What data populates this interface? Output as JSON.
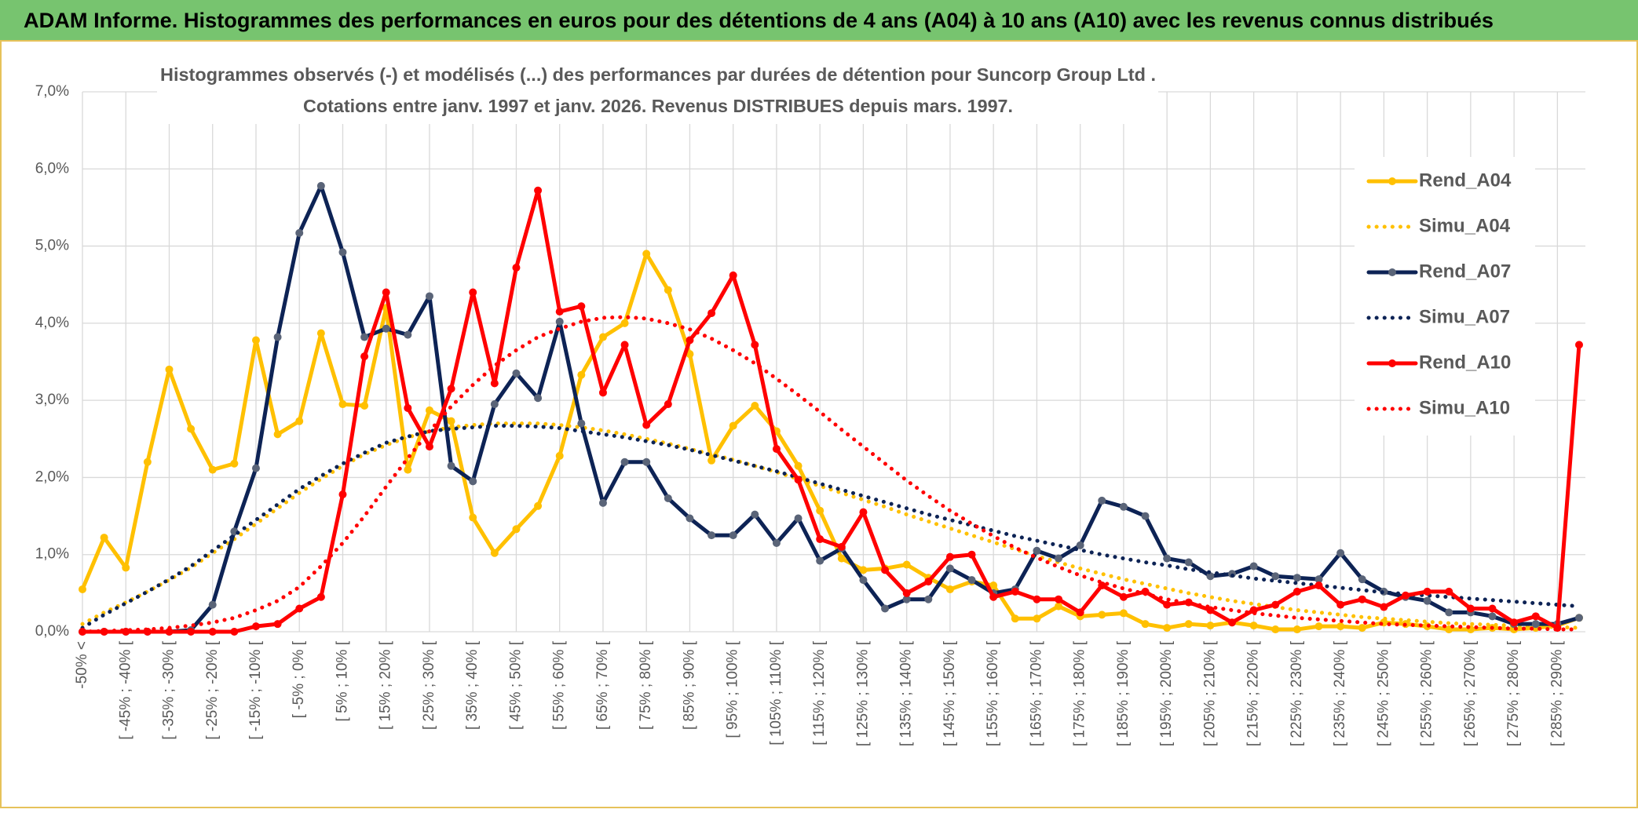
{
  "chart_data": {
    "type": "line",
    "header": "ADAM Informe. Histogrammes des performances en euros pour des détentions de 4 ans (A04) à 10 ans (A10) avec les revenus connus distribués",
    "title": "Histogrammes observés (-) et modélisés (...) des performances par durées de détention pour Suncorp Group Ltd .",
    "subtitle": "Cotations entre janv. 1997 et janv. 2026. Revenus DISTRIBUES depuis mars. 1997.",
    "categories": [
      "-50% <",
      null,
      "[ -45% ; -40% [",
      null,
      "[ -35% ; -30% [",
      null,
      "[ -25% ; -20% [",
      null,
      "[ -15% ; -10% [",
      null,
      "[ -5% ; 0% [",
      null,
      "[ 5% ; 10% [",
      null,
      "[ 15% ; 20% [",
      null,
      "[ 25% ; 30% [",
      null,
      "[ 35% ; 40% [",
      null,
      "[ 45% ; 50% [",
      null,
      "[ 55% ; 60% [",
      null,
      "[ 65% ; 70% [",
      null,
      "[ 75% ; 80% [",
      null,
      "[ 85% ; 90% [",
      null,
      "[ 95% ; 100% [",
      null,
      "[ 105% ; 110% [",
      null,
      "[ 115% ; 120% [",
      null,
      "[ 125% ; 130% [",
      null,
      "[ 135% ; 140% [",
      null,
      "[ 145% ; 150% [",
      null,
      "[ 155% ; 160% [",
      null,
      "[ 165% ; 170% [",
      null,
      "[ 175% ; 180% [",
      null,
      "[ 185% ; 190% [",
      null,
      "[ 195% ; 200% [",
      null,
      "[ 205% ; 210% [",
      null,
      "[ 215% ; 220% [",
      null,
      "[ 225% ; 230% [",
      null,
      "[ 235% ; 240% [",
      null,
      "[ 245% ; 250% [",
      null,
      "[ 255% ; 260% [",
      null,
      "[ 265% ; 270% [",
      null,
      "[ 275% ; 280% [",
      null,
      "[ 285% ; 290% [",
      null
    ],
    "series": [
      {
        "name": "Rend_A04",
        "color": "#ffc000",
        "style": "solid",
        "marker": true,
        "values": [
          0.55,
          1.22,
          0.83,
          2.2,
          3.4,
          2.63,
          2.1,
          2.18,
          3.78,
          2.56,
          2.73,
          3.87,
          2.95,
          2.93,
          4.2,
          2.1,
          2.87,
          2.73,
          1.48,
          1.02,
          1.33,
          1.63,
          2.28,
          3.33,
          3.82,
          4.0,
          4.9,
          4.43,
          3.6,
          2.22,
          2.67,
          2.93,
          2.6,
          2.15,
          1.57,
          0.95,
          0.8,
          0.82,
          0.87,
          0.7,
          0.55,
          0.65,
          0.6,
          0.17,
          0.17,
          0.33,
          0.2,
          0.22,
          0.24,
          0.1,
          0.05,
          0.1,
          0.08,
          0.12,
          0.08,
          0.03,
          0.03,
          0.07,
          0.07,
          0.05,
          0.12,
          0.1,
          0.07,
          0.03,
          0.03,
          0.05,
          0.03,
          0.05,
          0.08,
          0.18
        ]
      },
      {
        "name": "Simu_A04",
        "color": "#ffc000",
        "style": "dotted",
        "marker": false,
        "values": [
          0.1,
          0.25,
          0.38,
          0.52,
          0.67,
          0.83,
          1.02,
          1.2,
          1.4,
          1.6,
          1.8,
          1.98,
          2.15,
          2.3,
          2.42,
          2.52,
          2.6,
          2.65,
          2.68,
          2.7,
          2.7,
          2.7,
          2.68,
          2.65,
          2.61,
          2.56,
          2.5,
          2.44,
          2.37,
          2.3,
          2.23,
          2.15,
          2.07,
          1.98,
          1.89,
          1.8,
          1.71,
          1.62,
          1.52,
          1.43,
          1.34,
          1.25,
          1.16,
          1.07,
          0.98,
          0.9,
          0.82,
          0.75,
          0.68,
          0.62,
          0.56,
          0.5,
          0.45,
          0.4,
          0.36,
          0.32,
          0.28,
          0.25,
          0.22,
          0.19,
          0.17,
          0.15,
          0.13,
          0.11,
          0.1,
          0.09,
          0.08,
          0.07,
          0.06,
          0.05
        ]
      },
      {
        "name": "Rend_A07",
        "color": "#0d2355",
        "marker_color": "#5a6478",
        "style": "solid",
        "marker": true,
        "values": [
          0,
          0,
          0,
          0,
          0,
          0.02,
          0.35,
          1.3,
          2.12,
          3.82,
          5.17,
          5.78,
          4.92,
          3.82,
          3.93,
          3.85,
          4.35,
          2.15,
          1.95,
          2.95,
          3.35,
          3.03,
          4.02,
          2.7,
          1.67,
          2.2,
          2.2,
          1.73,
          1.47,
          1.25,
          1.25,
          1.52,
          1.15,
          1.47,
          0.92,
          1.08,
          0.67,
          0.3,
          0.42,
          0.42,
          0.82,
          0.67,
          0.5,
          0.55,
          1.05,
          0.95,
          1.12,
          1.7,
          1.62,
          1.5,
          0.95,
          0.9,
          0.72,
          0.75,
          0.85,
          0.72,
          0.7,
          0.68,
          1.02,
          0.68,
          0.52,
          0.45,
          0.4,
          0.25,
          0.25,
          0.2,
          0.1,
          0.1,
          0.1,
          0.18
        ]
      },
      {
        "name": "Simu_A07",
        "color": "#0d2355",
        "style": "dotted",
        "marker": false,
        "values": [
          0.05,
          0.22,
          0.37,
          0.52,
          0.68,
          0.85,
          1.05,
          1.25,
          1.45,
          1.65,
          1.85,
          2.02,
          2.18,
          2.32,
          2.45,
          2.53,
          2.6,
          2.63,
          2.65,
          2.67,
          2.67,
          2.66,
          2.64,
          2.6,
          2.56,
          2.52,
          2.47,
          2.42,
          2.36,
          2.29,
          2.22,
          2.15,
          2.08,
          2.0,
          1.92,
          1.84,
          1.76,
          1.68,
          1.6,
          1.52,
          1.45,
          1.38,
          1.31,
          1.24,
          1.18,
          1.12,
          1.06,
          1.0,
          0.95,
          0.9,
          0.86,
          0.81,
          0.77,
          0.73,
          0.69,
          0.66,
          0.63,
          0.6,
          0.57,
          0.54,
          0.51,
          0.49,
          0.47,
          0.45,
          0.43,
          0.41,
          0.39,
          0.37,
          0.35,
          0.33
        ]
      },
      {
        "name": "Rend_A10",
        "color": "#ff0000",
        "style": "solid",
        "marker": true,
        "values": [
          0,
          0,
          0,
          0,
          0,
          0,
          0,
          0,
          0.07,
          0.1,
          0.3,
          0.45,
          1.78,
          3.57,
          4.4,
          2.9,
          2.4,
          3.15,
          4.4,
          3.22,
          4.72,
          5.72,
          4.15,
          4.22,
          3.1,
          3.72,
          2.68,
          2.95,
          3.78,
          4.13,
          4.62,
          3.72,
          2.37,
          1.97,
          1.2,
          1.1,
          1.55,
          0.8,
          0.5,
          0.65,
          0.97,
          1.0,
          0.45,
          0.52,
          0.42,
          0.42,
          0.25,
          0.6,
          0.45,
          0.52,
          0.35,
          0.38,
          0.28,
          0.12,
          0.28,
          0.35,
          0.52,
          0.6,
          0.35,
          0.42,
          0.32,
          0.47,
          0.52,
          0.52,
          0.3,
          0.3,
          0.12,
          0.2,
          0.05,
          3.72
        ]
      },
      {
        "name": "Simu_A10",
        "color": "#ff0000",
        "style": "dotted",
        "marker": false,
        "values": [
          0.0,
          0.01,
          0.02,
          0.03,
          0.05,
          0.08,
          0.12,
          0.18,
          0.28,
          0.4,
          0.58,
          0.85,
          1.15,
          1.5,
          1.88,
          2.25,
          2.6,
          2.92,
          3.2,
          3.45,
          3.65,
          3.82,
          3.93,
          4.02,
          4.07,
          4.08,
          4.06,
          4.0,
          3.92,
          3.8,
          3.65,
          3.48,
          3.28,
          3.07,
          2.85,
          2.62,
          2.4,
          2.18,
          1.96,
          1.76,
          1.57,
          1.4,
          1.24,
          1.09,
          0.96,
          0.84,
          0.73,
          0.64,
          0.56,
          0.49,
          0.42,
          0.37,
          0.32,
          0.28,
          0.24,
          0.21,
          0.18,
          0.16,
          0.14,
          0.12,
          0.1,
          0.09,
          0.08,
          0.07,
          0.06,
          0.05,
          0.04,
          0.04,
          0.03,
          0.03
        ]
      }
    ],
    "ylim": [
      0,
      7
    ],
    "yticks": [
      {
        "value": 0,
        "label": "0,0%"
      },
      {
        "value": 1,
        "label": "1,0%"
      },
      {
        "value": 2,
        "label": "2,0%"
      },
      {
        "value": 3,
        "label": "3,0%"
      },
      {
        "value": 4,
        "label": "4,0%"
      },
      {
        "value": 5,
        "label": "5,0%"
      },
      {
        "value": 6,
        "label": "6,0%"
      },
      {
        "value": 7,
        "label": "7,0%"
      }
    ],
    "grid": true,
    "legend": "right"
  }
}
